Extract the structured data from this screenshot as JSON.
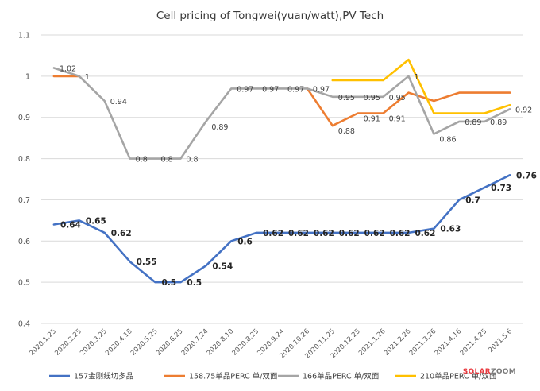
{
  "chart_data": {
    "type": "line",
    "title": "Cell pricing of Tongwei(yuan/watt),PV Tech",
    "xlabel": "",
    "ylabel": "",
    "ylim": [
      0.4,
      1.1
    ],
    "yticks": [
      "0.4",
      "0.5",
      "0.6",
      "0.7",
      "0.8",
      "0.9",
      "1",
      "1.1"
    ],
    "grid": true,
    "legend": "bottom",
    "categories": [
      "2020.1.25",
      "2020.2.25",
      "2020.3.25",
      "2020.4.18",
      "2020.5.25",
      "2020.6.25",
      "2020.7.24",
      "2020.8.10",
      "2020.8.25",
      "2020.9.24",
      "2020.10.26",
      "2020.11.25",
      "2020.12.25",
      "2021.1.26",
      "2021.2.26",
      "2021.3.26",
      "2021.4.16",
      "2021.4.25",
      "2021.5.6"
    ],
    "series": [
      {
        "name": "157金刚线切多晶",
        "color": "#4472c4",
        "values": [
          0.64,
          0.65,
          0.62,
          0.55,
          0.5,
          0.5,
          0.54,
          0.6,
          0.62,
          0.62,
          0.62,
          0.62,
          0.62,
          0.62,
          0.62,
          0.63,
          0.7,
          0.73,
          0.76
        ],
        "labels": [
          "0.64",
          "0.65",
          "0.62",
          "0.55",
          "0.5",
          "0.5",
          "0.54",
          "0.6",
          "0.62",
          "0.62",
          "0.62",
          "0.62",
          "0.62",
          "0.62",
          "0.62",
          "0.63",
          "0.7",
          "0.73",
          "0.76"
        ]
      },
      {
        "name": "158.75单晶PERC 单/双面",
        "color": "#ed7d31",
        "values": [
          1.0,
          1.0,
          null,
          null,
          null,
          null,
          null,
          null,
          null,
          null,
          0.97,
          0.88,
          0.91,
          0.91,
          0.96,
          0.94,
          0.96,
          0.96,
          0.96
        ],
        "labels": [
          null,
          null,
          null,
          null,
          null,
          null,
          null,
          null,
          null,
          null,
          null,
          "0.88",
          "0.91",
          "0.91",
          null,
          null,
          null,
          null,
          null
        ]
      },
      {
        "name": "166单晶PERC 单/双面",
        "color": "#a5a5a5",
        "values": [
          1.02,
          1.0,
          0.94,
          0.8,
          0.8,
          0.8,
          0.89,
          0.97,
          0.97,
          0.97,
          0.97,
          0.95,
          0.95,
          0.95,
          1.0,
          0.86,
          0.89,
          0.89,
          0.92
        ],
        "labels": [
          "1.02",
          "1",
          "0.94",
          "0.8",
          "0.8",
          "0.8",
          "0.89",
          "0.97",
          "0.97",
          "0.97",
          "0.97",
          "0.95",
          "0.95",
          "0.95",
          "1",
          "0.86",
          "0.89",
          "0.89",
          "0.92"
        ]
      },
      {
        "name": "210单晶PERC 单/双面",
        "color": "#ffc000",
        "values": [
          null,
          null,
          null,
          null,
          null,
          null,
          null,
          null,
          null,
          null,
          null,
          0.99,
          0.99,
          0.99,
          1.04,
          0.91,
          0.91,
          0.91,
          0.93
        ],
        "labels": [
          null,
          null,
          null,
          null,
          null,
          null,
          null,
          null,
          null,
          null,
          null,
          null,
          null,
          null,
          null,
          null,
          null,
          null,
          null
        ]
      }
    ]
  },
  "watermark": {
    "part1": "SOLAR",
    "part2": "ZOOM",
    "color1": "#e8383d",
    "color2": "#7a7a7a"
  }
}
